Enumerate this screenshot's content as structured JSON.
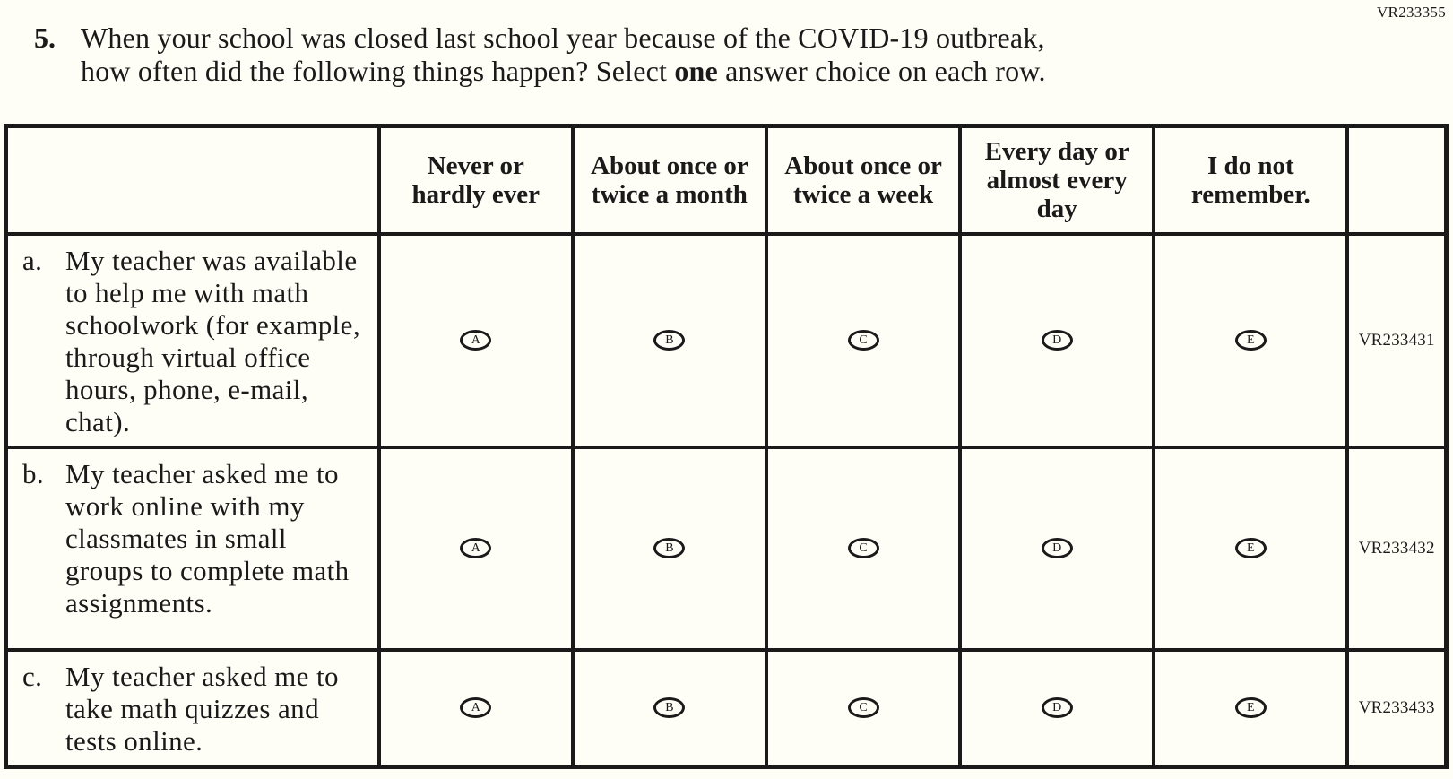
{
  "page": {
    "code": "VR233355",
    "background": "#fffef6",
    "ink_color": "#1a1a1a"
  },
  "question": {
    "number": "5.",
    "line1": "When your school was closed last school year because of the COVID-19 outbreak,",
    "line2_before": "how often did the following things happen? Select ",
    "line2_bold": "one",
    "line2_after": " answer choice on each row."
  },
  "table": {
    "columns": [
      "",
      "Never or hardly ever",
      "About once or twice a month",
      "About once or twice a week",
      "Every day or almost every day",
      "I do not remember.",
      ""
    ],
    "choices": [
      "A",
      "B",
      "C",
      "D",
      "E"
    ],
    "rows": [
      {
        "letter": "a.",
        "text": "My teacher was available to help me with math schoolwork (for example, through virtual office hours, phone, e-mail, chat).",
        "code": "VR233431"
      },
      {
        "letter": "b.",
        "text": "My teacher asked me to work online with my classmates in small groups to complete math assignments.",
        "code": "VR233432"
      },
      {
        "letter": "c.",
        "text": "My teacher asked me to take math quizzes and tests online.",
        "code": "VR233433"
      }
    ]
  }
}
